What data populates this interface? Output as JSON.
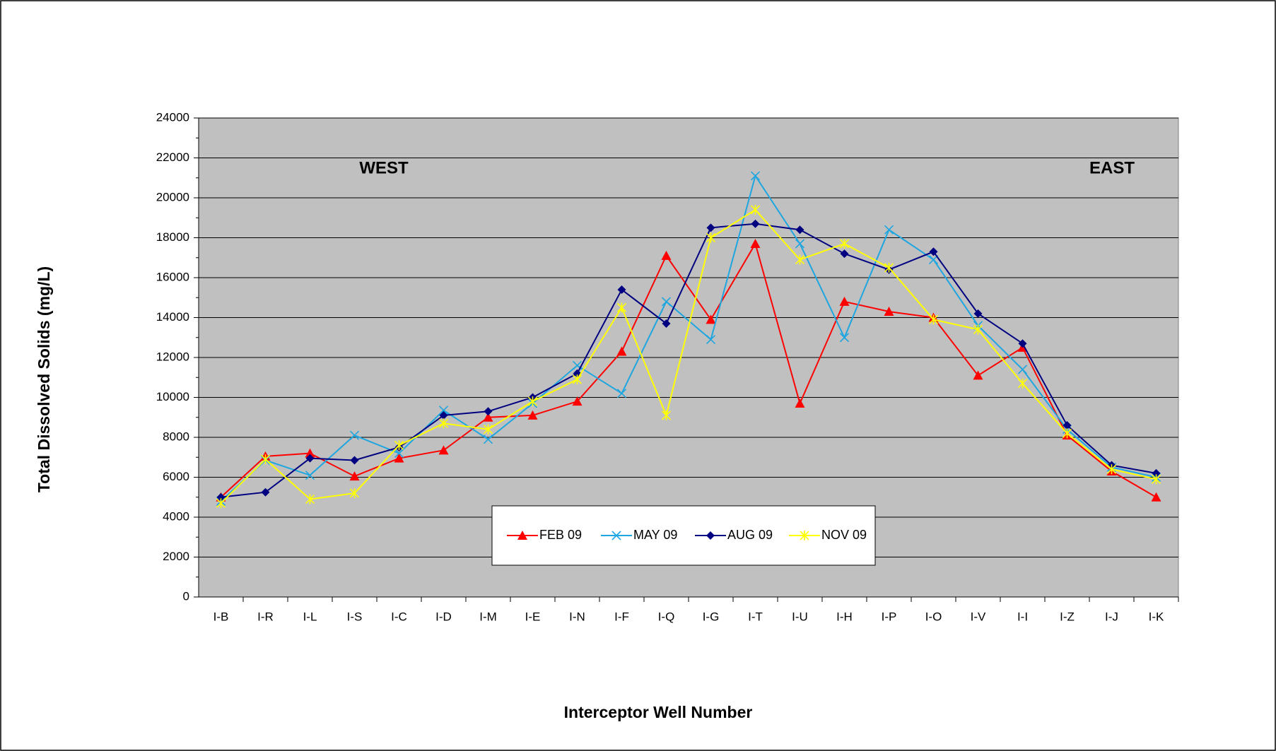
{
  "chart_data": {
    "type": "line",
    "x_label": "Interceptor Well Number",
    "y_label": "Total Dissolved Solids (mg/L)",
    "annotations": [
      "WEST",
      "EAST"
    ],
    "categories": [
      "I-B",
      "I-R",
      "I-L",
      "I-S",
      "I-C",
      "I-D",
      "I-M",
      "I-E",
      "I-N",
      "I-F",
      "I-Q",
      "I-G",
      "I-T",
      "I-U",
      "I-H",
      "I-P",
      "I-O",
      "I-V",
      "I-I",
      "I-Z",
      "I-J",
      "I-K"
    ],
    "series": [
      {
        "name": "FEB 09",
        "color": "#ff0000",
        "marker": "triangle",
        "values": [
          5000,
          7050,
          7200,
          6050,
          6950,
          7350,
          9000,
          9100,
          9800,
          12300,
          17100,
          13900,
          17700,
          9700,
          14800,
          14300,
          14000,
          11100,
          12500,
          8100,
          6300,
          5000
        ]
      },
      {
        "name": "MAY 09",
        "color": "#1ea6e0",
        "marker": "x",
        "values": [
          4800,
          6850,
          6100,
          8100,
          7200,
          9350,
          7900,
          9700,
          11600,
          10200,
          14800,
          12900,
          21100,
          17700,
          13000,
          18400,
          16900,
          13600,
          11400,
          8400,
          6500,
          6000
        ]
      },
      {
        "name": "AUG 09",
        "color": "#000080",
        "marker": "diamond",
        "values": [
          5000,
          5250,
          6950,
          6850,
          7500,
          9100,
          9300,
          10000,
          11200,
          15400,
          13700,
          18500,
          18700,
          18400,
          17200,
          16400,
          17300,
          14200,
          12700,
          8600,
          6600,
          6200
        ]
      },
      {
        "name": "NOV 09",
        "color": "#ffff00",
        "marker": "star",
        "values": [
          4700,
          6900,
          4900,
          5200,
          7600,
          8700,
          8400,
          9800,
          10900,
          14500,
          9100,
          18000,
          19400,
          16900,
          17700,
          16500,
          13900,
          13400,
          10700,
          8200,
          6400,
          5900
        ]
      }
    ],
    "ylim": [
      0,
      24000
    ],
    "yticks": [
      0,
      2000,
      4000,
      6000,
      8000,
      10000,
      12000,
      14000,
      16000,
      18000,
      20000,
      22000,
      24000
    ],
    "grid": true,
    "plot_background": "#c0c0c0",
    "legend": "bottom"
  }
}
